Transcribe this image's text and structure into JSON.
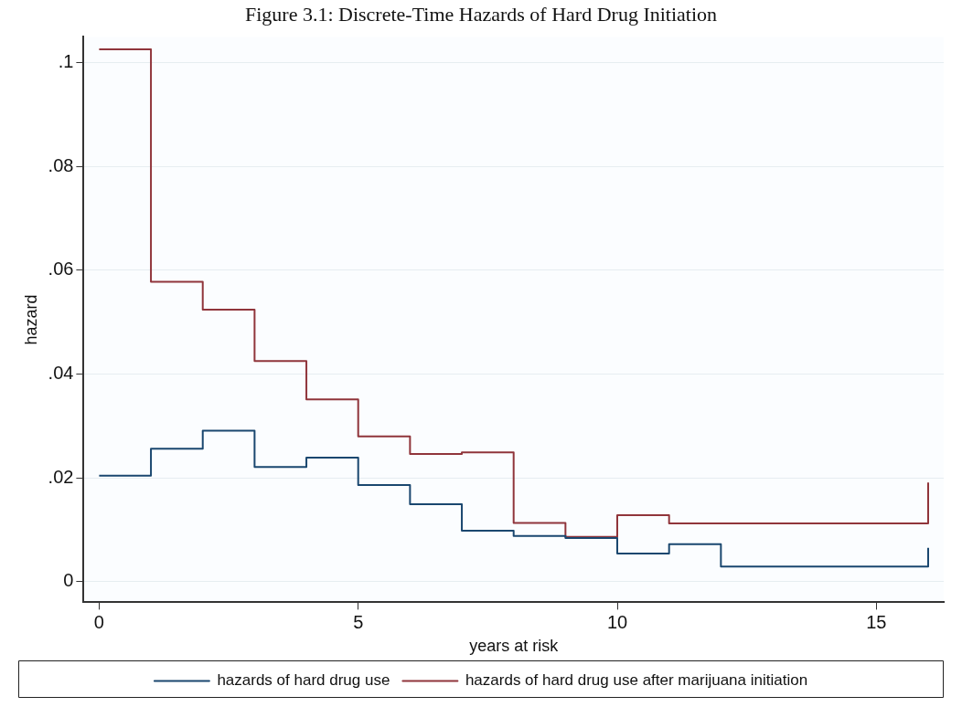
{
  "chart_data": {
    "type": "step",
    "title": "Figure 3.1: Discrete-Time Hazards of Hard Drug Initiation",
    "xlabel": "years at risk",
    "ylabel": "hazard",
    "x": [
      0,
      1,
      2,
      3,
      4,
      5,
      6,
      7,
      8,
      9,
      10,
      11,
      12,
      13,
      14,
      15,
      16
    ],
    "series": [
      {
        "name": "hazards of hard drug use",
        "color": "#1a476f",
        "values": [
          0.0204,
          0.0256,
          0.0291,
          0.0221,
          0.0239,
          0.0186,
          0.0149,
          0.0098,
          0.0088,
          0.0084,
          0.0054,
          0.0072,
          0.0029,
          0.0029,
          0.0029,
          0.0029,
          0.0065
        ]
      },
      {
        "name": "hazards of hard drug use after marijuana initiation",
        "color": "#90353b",
        "values": [
          0.1026,
          0.0578,
          0.0524,
          0.0425,
          0.0351,
          0.028,
          0.0246,
          0.0249,
          0.0113,
          0.0086,
          0.0128,
          0.0112,
          0.0112,
          0.0112,
          0.0112,
          0.0112,
          0.0191
        ]
      }
    ],
    "xlim": [
      -0.3,
      16.3
    ],
    "xticks": [
      0,
      5,
      10,
      15
    ],
    "ylim": [
      -0.004,
      0.105
    ],
    "yticks": [
      {
        "value": 0,
        "label": "0"
      },
      {
        "value": 0.02,
        "label": ".02"
      },
      {
        "value": 0.04,
        "label": ".04"
      },
      {
        "value": 0.06,
        "label": ".06"
      },
      {
        "value": 0.08,
        "label": ".08"
      },
      {
        "value": 0.1,
        "label": ".1"
      }
    ],
    "grid": "y",
    "legend": "bottom",
    "marker": "none",
    "line_style": "solid"
  }
}
